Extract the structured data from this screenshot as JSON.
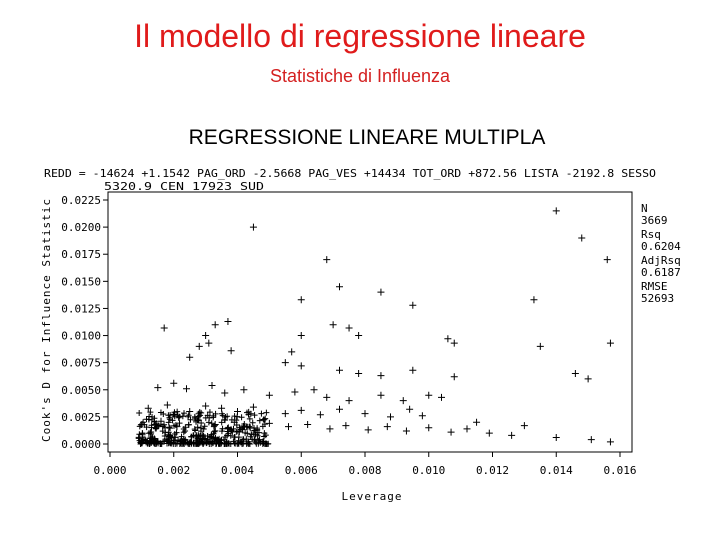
{
  "slide": {
    "title": "Il modello di regressione lineare",
    "subtitle": "Statistiche di Influenza"
  },
  "chart_data": {
    "type": "scatter",
    "title": "REGRESSIONE LINEARE MULTIPLA",
    "equation_line1": "REDD = -14624 +1.1542 PAG_ORD -2.5668 PAG_VES +14434 TOT_ORD +872.56 LISTA -2192.8 SESSO",
    "equation_line2": "5320.9 CEN  17923 SUD",
    "xlabel": "Leverage",
    "ylabel": "Cook's D for Influence Statistic",
    "xlim": [
      0.0,
      0.016
    ],
    "ylim": [
      0.0,
      0.0225
    ],
    "x_ticks": [
      "0.000",
      "0.002",
      "0.004",
      "0.006",
      "0.008",
      "0.010",
      "0.012",
      "0.014",
      "0.016"
    ],
    "y_ticks": [
      "0.0000",
      "0.0025",
      "0.0050",
      "0.0075",
      "0.0100",
      "0.0125",
      "0.0150",
      "0.0175",
      "0.0200",
      "0.0225"
    ],
    "stats": [
      {
        "label": "N",
        "value": "3669"
      },
      {
        "label": "Rsq",
        "value": "0.6204"
      },
      {
        "label": "AdjRsq",
        "value": "0.6187"
      },
      {
        "label": "RMSE",
        "value": "52693"
      }
    ],
    "series": [
      {
        "points": [
          [
            0.0045,
            0.02
          ],
          [
            0.014,
            0.0215
          ],
          [
            0.0148,
            0.019
          ],
          [
            0.0156,
            0.017
          ],
          [
            0.0068,
            0.017
          ],
          [
            0.0072,
            0.0145
          ],
          [
            0.0085,
            0.014
          ],
          [
            0.0095,
            0.0128
          ],
          [
            0.006,
            0.0133
          ],
          [
            0.0133,
            0.0133
          ],
          [
            0.0017,
            0.0107
          ],
          [
            0.0033,
            0.011
          ],
          [
            0.0037,
            0.0113
          ],
          [
            0.007,
            0.011
          ],
          [
            0.0075,
            0.0107
          ],
          [
            0.0078,
            0.01
          ],
          [
            0.006,
            0.01
          ],
          [
            0.0106,
            0.0097
          ],
          [
            0.0108,
            0.0093
          ],
          [
            0.0135,
            0.009
          ],
          [
            0.0157,
            0.0093
          ],
          [
            0.003,
            0.01
          ],
          [
            0.0031,
            0.0093
          ],
          [
            0.0028,
            0.009
          ],
          [
            0.0038,
            0.0086
          ],
          [
            0.0025,
            0.008
          ],
          [
            0.0057,
            0.0085
          ],
          [
            0.0055,
            0.0075
          ],
          [
            0.006,
            0.0072
          ],
          [
            0.0072,
            0.0068
          ],
          [
            0.0078,
            0.0065
          ],
          [
            0.0085,
            0.0063
          ],
          [
            0.0095,
            0.0068
          ],
          [
            0.0108,
            0.0062
          ],
          [
            0.0146,
            0.0065
          ],
          [
            0.015,
            0.006
          ],
          [
            0.0015,
            0.0052
          ],
          [
            0.002,
            0.0056
          ],
          [
            0.0024,
            0.0051
          ],
          [
            0.0032,
            0.0054
          ],
          [
            0.0036,
            0.0047
          ],
          [
            0.0042,
            0.005
          ],
          [
            0.005,
            0.0045
          ],
          [
            0.0058,
            0.0048
          ],
          [
            0.0064,
            0.005
          ],
          [
            0.0068,
            0.0043
          ],
          [
            0.0075,
            0.004
          ],
          [
            0.0085,
            0.0045
          ],
          [
            0.0092,
            0.004
          ],
          [
            0.01,
            0.0045
          ],
          [
            0.0104,
            0.0043
          ],
          [
            0.0012,
            0.0033
          ],
          [
            0.0018,
            0.0036
          ],
          [
            0.0025,
            0.003
          ],
          [
            0.003,
            0.0035
          ],
          [
            0.0035,
            0.0033
          ],
          [
            0.004,
            0.003
          ],
          [
            0.0045,
            0.0034
          ],
          [
            0.0055,
            0.0028
          ],
          [
            0.006,
            0.0031
          ],
          [
            0.0066,
            0.0027
          ],
          [
            0.0072,
            0.0032
          ],
          [
            0.008,
            0.0028
          ],
          [
            0.0088,
            0.0025
          ],
          [
            0.0094,
            0.0032
          ],
          [
            0.0098,
            0.0026
          ],
          [
            0.0115,
            0.002
          ],
          [
            0.013,
            0.0017
          ],
          [
            0.001,
            0.0018
          ],
          [
            0.0016,
            0.0021
          ],
          [
            0.0021,
            0.0016
          ],
          [
            0.0027,
            0.0022
          ],
          [
            0.0033,
            0.0018
          ],
          [
            0.0039,
            0.002
          ],
          [
            0.0044,
            0.0015
          ],
          [
            0.005,
            0.0019
          ],
          [
            0.0056,
            0.0016
          ],
          [
            0.0062,
            0.0018
          ],
          [
            0.0069,
            0.0014
          ],
          [
            0.0074,
            0.0017
          ],
          [
            0.0081,
            0.0013
          ],
          [
            0.0087,
            0.0016
          ],
          [
            0.0093,
            0.0012
          ],
          [
            0.01,
            0.0015
          ],
          [
            0.0107,
            0.0011
          ],
          [
            0.0112,
            0.0014
          ],
          [
            0.0119,
            0.001
          ],
          [
            0.0126,
            0.0008
          ],
          [
            0.014,
            0.0006
          ],
          [
            0.0151,
            0.0004
          ],
          [
            0.0157,
            0.0002
          ]
        ]
      }
    ],
    "dense_cluster": {
      "x_range": [
        0.0009,
        0.005
      ],
      "y_range": [
        0.0,
        0.003
      ]
    }
  }
}
